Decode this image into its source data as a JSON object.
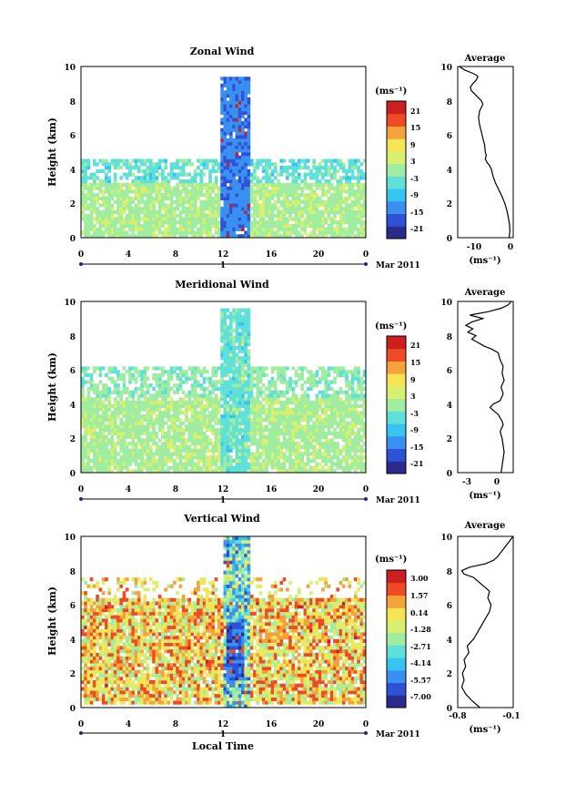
{
  "figure": {
    "x_axis_label": "Local Time",
    "date_label": "Mar 2011",
    "day_label": "1",
    "unit_label": "(ms⁻¹)",
    "x_ticks": [
      "0",
      "4",
      "8",
      "12",
      "16",
      "20",
      "0"
    ]
  },
  "colormap": [
    "#2b2b8c",
    "#2e52d6",
    "#3a8ff0",
    "#38c4f0",
    "#5fe0d8",
    "#a0eca0",
    "#d8f070",
    "#f6e454",
    "#f6a23a",
    "#ef4a26",
    "#cc2020"
  ],
  "chart_data": [
    {
      "type": "heatmap",
      "title": "Zonal Wind",
      "xlabel": "",
      "ylabel": "Height (km)",
      "xlim": [
        0,
        24
      ],
      "ylim": [
        0,
        10
      ],
      "y_ticks": [
        "0",
        "2",
        "4",
        "6",
        "8",
        "10"
      ],
      "colorbar": {
        "label": "(ms⁻¹)",
        "ticks": [
          "21",
          "15",
          "9",
          "3",
          "-3",
          "-9",
          "-15",
          "-21"
        ],
        "range": [
          -24,
          24
        ]
      },
      "approx_field": {
        "background_range_km": [
          0.1,
          3.2
        ],
        "background_value": 1,
        "mid_layer_range_km": [
          3.2,
          4.6
        ],
        "mid_layer_value": -4,
        "column_hours": [
          11.8,
          14.2
        ],
        "column_top_km": 9.4,
        "column_value": -14,
        "column_max_value": 20
      },
      "profile": {
        "title": "Average",
        "xlabel": "(ms⁻¹)",
        "x_ticks": [
          "-10",
          "0"
        ],
        "xlim": [
          -15,
          1.5
        ],
        "y_ticks": [
          "0",
          "2",
          "4",
          "6",
          "8",
          "10"
        ],
        "ylim": [
          0,
          10
        ],
        "x": [
          0.3,
          0.5,
          0.4,
          0,
          -0.4,
          -1,
          -1.8,
          -2.8,
          -3.8,
          -4.5,
          -5,
          -5.5,
          -6.3,
          -6.8,
          -6.5,
          -6.8,
          -7,
          -7.5,
          -8,
          -8.5,
          -8.8,
          -8.5,
          -8,
          -7.5,
          -8,
          -9,
          -10,
          -11,
          -11.2,
          -10.5,
          -9.5,
          -9,
          -9.5,
          -10.5,
          -13,
          -14.5
        ],
        "y": [
          0,
          0.4,
          0.8,
          1.2,
          1.6,
          2,
          2.4,
          2.8,
          3.2,
          3.6,
          4,
          4.2,
          4.4,
          4.6,
          4.8,
          5,
          5.4,
          5.8,
          6.2,
          6.6,
          7,
          7.4,
          7.6,
          7.8,
          8,
          8.2,
          8.4,
          8.6,
          8.8,
          9,
          9.2,
          9.4,
          9.5,
          9.6,
          9.8,
          10
        ]
      }
    },
    {
      "type": "heatmap",
      "title": "Meridional Wind",
      "xlabel": "",
      "ylabel": "Height (km)",
      "xlim": [
        0,
        24
      ],
      "ylim": [
        0,
        10
      ],
      "y_ticks": [
        "0",
        "2",
        "4",
        "6",
        "8",
        "10"
      ],
      "colorbar": {
        "label": "(ms⁻¹)",
        "ticks": [
          "21",
          "15",
          "9",
          "3",
          "-3",
          "-9",
          "-15",
          "-21"
        ],
        "range": [
          -24,
          24
        ]
      },
      "approx_field": {
        "background_range_km": [
          0.1,
          4.4
        ],
        "background_value": 1,
        "mid_layer_range_km": [
          4.4,
          6.2
        ],
        "mid_layer_value": -1,
        "column_hours": [
          11.8,
          14.2
        ],
        "column_top_km": 9.6,
        "column_value": -4,
        "column_max_value": 6
      },
      "profile": {
        "title": "Average",
        "xlabel": "(ms⁻¹)",
        "x_ticks": [
          "-3",
          "0"
        ],
        "xlim": [
          -4,
          1.5
        ],
        "y_ticks": [
          "0",
          "2",
          "4",
          "6",
          "8",
          "10"
        ],
        "ylim": [
          0,
          10
        ],
        "x": [
          0.3,
          0.4,
          0.5,
          0.6,
          0.5,
          0.4,
          0.2,
          0.5,
          0.4,
          0.2,
          0,
          -0.4,
          -0.8,
          -0.5,
          0.2,
          0.5,
          0.3,
          0.6,
          0.4,
          0.5,
          0.2,
          0,
          -0.6,
          -1.4,
          -2,
          -2.6,
          -2.2,
          -3,
          -2.5,
          -3.2,
          -2.6,
          -1.5,
          -2.8,
          -1,
          0.3,
          1,
          1.3
        ],
        "y": [
          0,
          0.4,
          0.8,
          1.2,
          1.6,
          2,
          2.4,
          2.8,
          3,
          3.2,
          3.4,
          3.6,
          3.8,
          4,
          4.2,
          4.6,
          5,
          5.4,
          5.8,
          6.2,
          6.6,
          7,
          7.2,
          7.4,
          7.6,
          7.8,
          8,
          8.2,
          8.4,
          8.6,
          8.8,
          9,
          9.2,
          9.4,
          9.6,
          9.8,
          10
        ]
      }
    },
    {
      "type": "heatmap",
      "title": "Vertical Wind",
      "xlabel": "Local Time",
      "ylabel": "Height (km)",
      "xlim": [
        0,
        24
      ],
      "ylim": [
        0,
        10
      ],
      "y_ticks": [
        "0",
        "2",
        "4",
        "6",
        "8",
        "10"
      ],
      "colorbar": {
        "label": "(ms⁻¹)",
        "ticks": [
          "3.00",
          "1.57",
          "0.14",
          "-1.28",
          "-2.71",
          "-4.14",
          "-5.57",
          "-7.00"
        ],
        "range": [
          -7.7,
          3.7
        ]
      },
      "approx_field": {
        "background_range_km": [
          0.3,
          6.4
        ],
        "background_value": 0.2,
        "mid_layer_range_km": [
          0,
          0
        ],
        "mid_layer_value": 0,
        "column_hours": [
          12,
          14.2
        ],
        "column_top_km": 10,
        "column_value": -3,
        "column_min_value": -7,
        "column_max_value": 2.5
      },
      "profile": {
        "title": "Average",
        "xlabel": "(ms⁻¹)",
        "x_ticks": [
          "-0.8",
          "-0.1"
        ],
        "xlim": [
          -0.8,
          -0.1
        ],
        "y_ticks": [
          "0",
          "2",
          "4",
          "6",
          "8",
          "10"
        ],
        "ylim": [
          0,
          10
        ],
        "x": [
          -0.52,
          -0.62,
          -0.7,
          -0.75,
          -0.72,
          -0.74,
          -0.7,
          -0.72,
          -0.66,
          -0.68,
          -0.6,
          -0.55,
          -0.5,
          -0.45,
          -0.4,
          -0.38,
          -0.42,
          -0.4,
          -0.5,
          -0.6,
          -0.72,
          -0.75,
          -0.65,
          -0.45,
          -0.35,
          -0.3,
          -0.25,
          -0.2,
          -0.15,
          -0.1
        ],
        "y": [
          0,
          0.4,
          0.8,
          1.2,
          1.6,
          2,
          2.4,
          2.8,
          3.2,
          3.6,
          4,
          4.4,
          4.8,
          5.2,
          5.6,
          6,
          6.4,
          6.8,
          7.2,
          7.6,
          7.8,
          8,
          8.2,
          8.4,
          8.6,
          8.8,
          9.1,
          9.4,
          9.7,
          10
        ]
      }
    }
  ]
}
